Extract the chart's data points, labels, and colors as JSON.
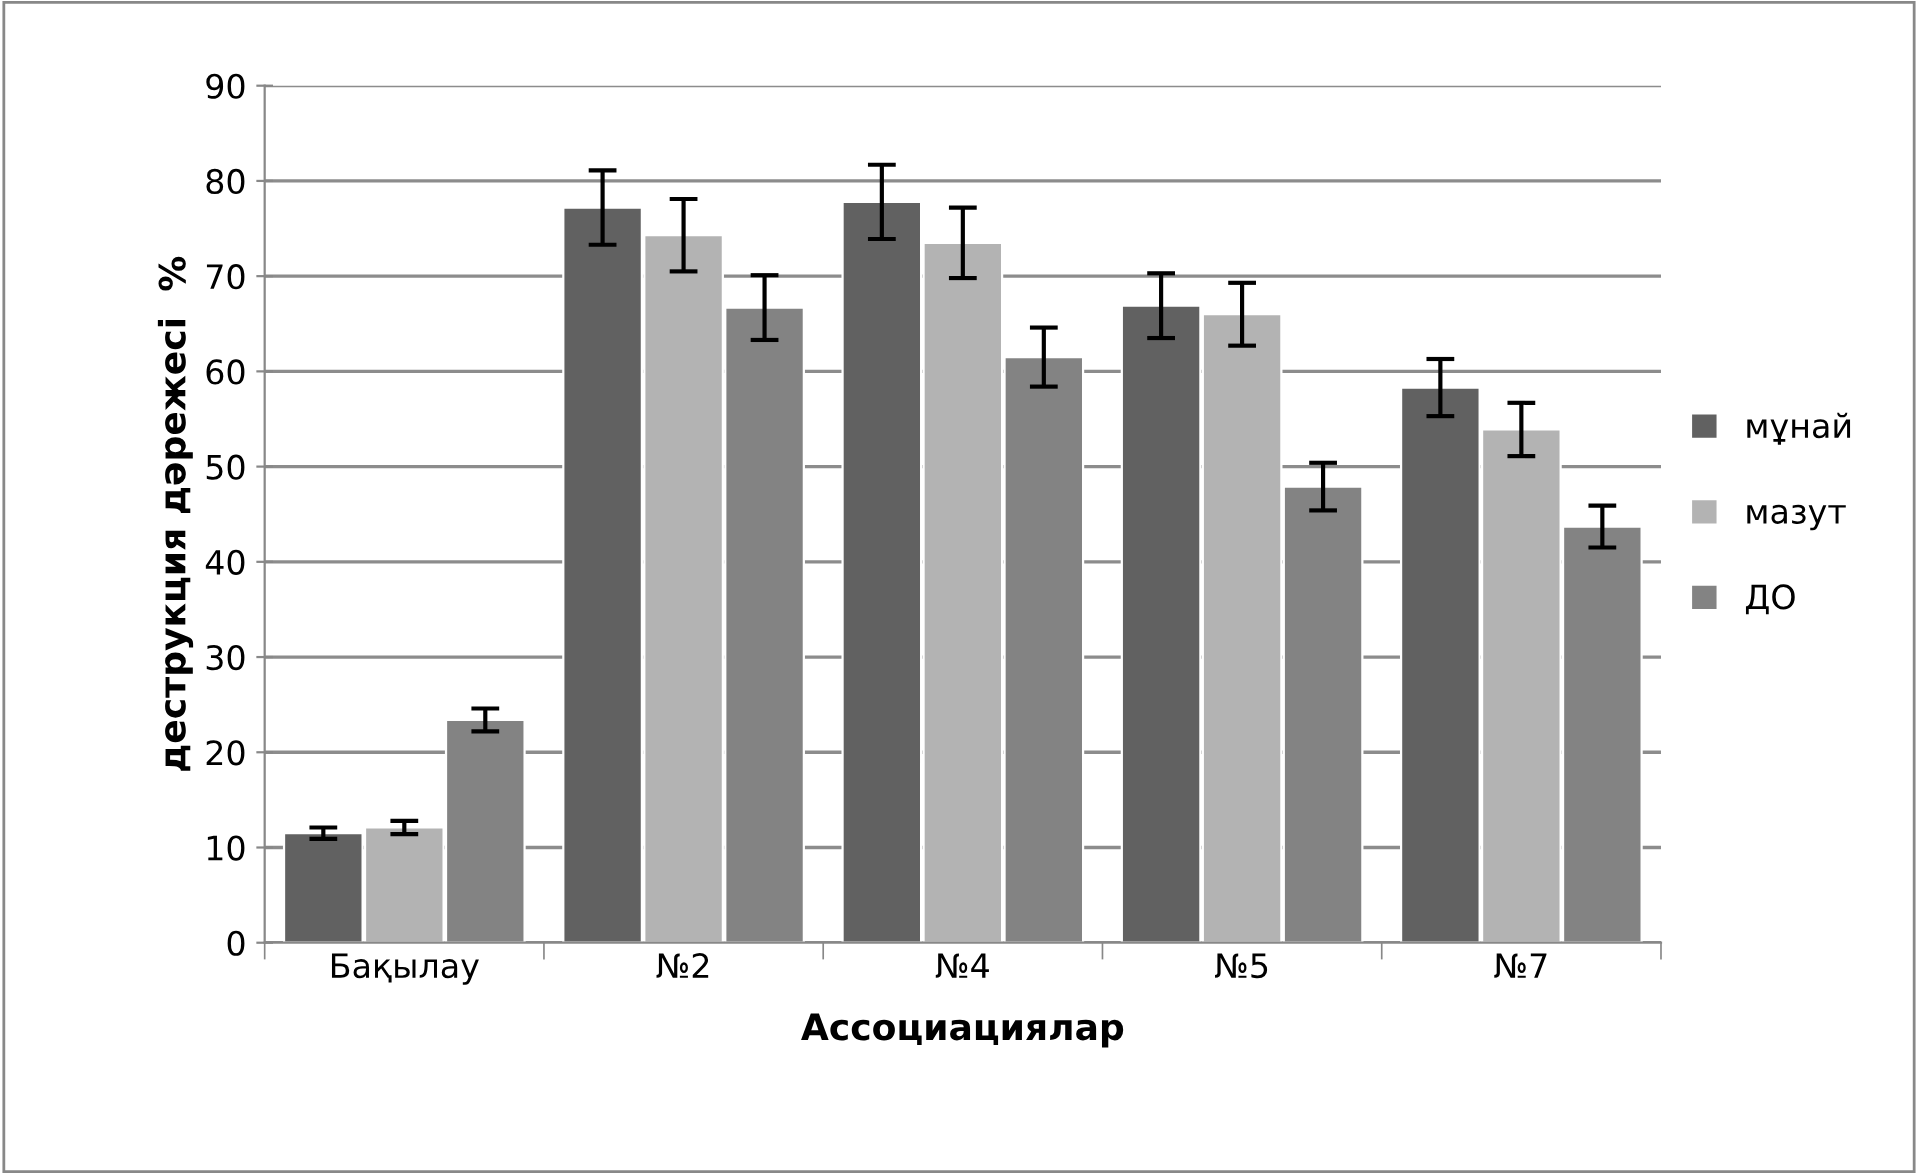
{
  "chart_data": {
    "type": "bar",
    "xlabel": "Ассоциациялар",
    "ylabel": "деструкция дәрежесі  %",
    "categories": [
      "Бақылау",
      "№2",
      "№4",
      "№5",
      "№7"
    ],
    "series": [
      {
        "name": "мұнай",
        "color": "#616161",
        "values": [
          11.5,
          77.2,
          77.8,
          66.9,
          58.3
        ],
        "errors": [
          0.6,
          3.9,
          3.9,
          3.4,
          3.0
        ]
      },
      {
        "name": "мазут",
        "color": "#b3b3b3",
        "values": [
          12.1,
          74.3,
          73.5,
          66.0,
          53.9
        ],
        "errors": [
          0.7,
          3.8,
          3.7,
          3.3,
          2.8
        ]
      },
      {
        "name": "ДО",
        "color": "#838383",
        "values": [
          23.4,
          66.7,
          61.5,
          47.9,
          43.7
        ],
        "errors": [
          1.2,
          3.4,
          3.1,
          2.5,
          2.2
        ]
      }
    ],
    "ylim": [
      0,
      90
    ],
    "yticks": [
      0,
      10,
      20,
      30,
      40,
      50,
      60,
      70,
      80,
      90
    ],
    "grid": "y",
    "legend": "right"
  }
}
